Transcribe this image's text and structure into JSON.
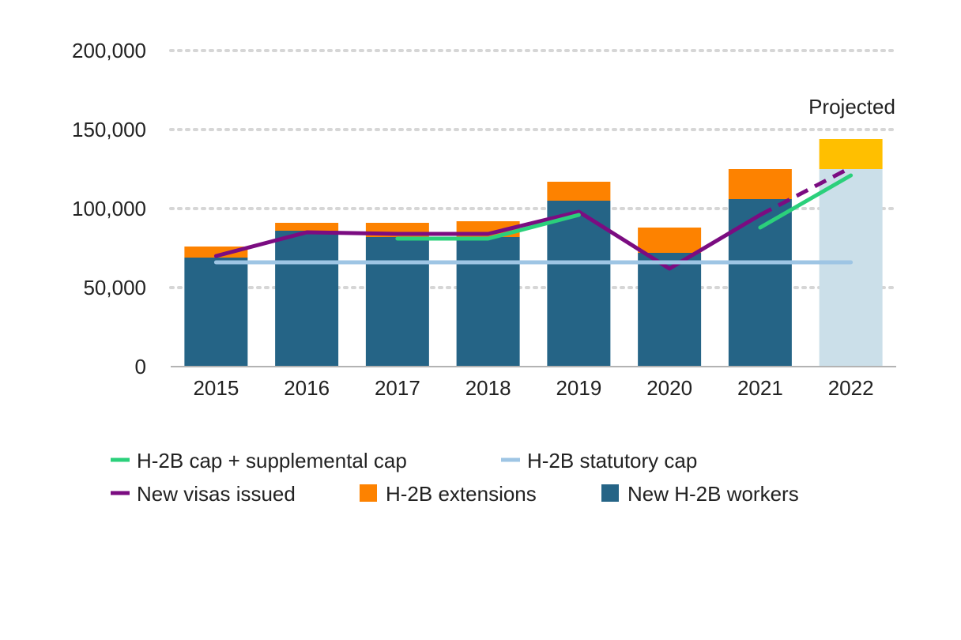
{
  "chart_data": {
    "type": "bar",
    "stacked": true,
    "categories": [
      "2015",
      "2016",
      "2017",
      "2018",
      "2019",
      "2020",
      "2021",
      "2022"
    ],
    "ylim": [
      0,
      200000
    ],
    "yticks": [
      0,
      50000,
      100000,
      150000,
      200000
    ],
    "ytick_labels": [
      "0",
      "50,000",
      "100,000",
      "150,000",
      "200,000"
    ],
    "grid": "horizontal-dotted",
    "bar_series": [
      {
        "name": "New H-2B workers",
        "color": "#256486",
        "projected_color": "#cbdfe9",
        "values": [
          69000,
          86000,
          82000,
          82000,
          105000,
          72000,
          106000,
          125000
        ]
      },
      {
        "name": "H-2B extensions",
        "color": "#fd8200",
        "projected_color": "#ffbf00",
        "values": [
          7000,
          5000,
          9000,
          10000,
          12000,
          16000,
          19000,
          19000
        ]
      }
    ],
    "line_series": [
      {
        "name": "New visas issued",
        "color": "#7b0c81",
        "values": [
          70000,
          85000,
          84000,
          84000,
          98000,
          62000,
          96000,
          126000
        ],
        "projected_from_index": 6
      },
      {
        "name": "H-2B cap + supplemental cap",
        "color": "#2bd07b",
        "segments": [
          [
            [
              2,
              81000
            ],
            [
              3,
              81000
            ],
            [
              4,
              96000
            ]
          ],
          [
            [
              6,
              88000
            ],
            [
              7,
              121000
            ]
          ]
        ]
      },
      {
        "name": "H-2B statutory cap",
        "color": "#9ec5e4",
        "values": [
          66000,
          66000,
          66000,
          66000,
          66000,
          66000,
          66000,
          66000
        ]
      }
    ],
    "projected_index": 7,
    "annotation": "Projected",
    "legend": {
      "placement": "bottom",
      "rows": [
        [
          {
            "label": "H-2B cap + supplemental cap",
            "kind": "line",
            "color": "#2bd07b"
          },
          {
            "label": "H-2B statutory cap",
            "kind": "line",
            "color": "#9ec5e4"
          }
        ],
        [
          {
            "label": "New visas issued",
            "kind": "line",
            "color": "#7b0c81"
          },
          {
            "label": "H-2B extensions",
            "kind": "box",
            "color": "#fd8200"
          },
          {
            "label": "New H-2B workers",
            "kind": "box",
            "color": "#256486"
          }
        ]
      ]
    }
  }
}
